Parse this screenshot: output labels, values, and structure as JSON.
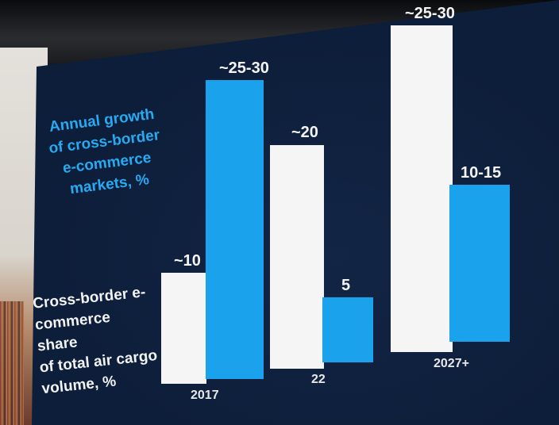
{
  "slide": {
    "legend_blue": "Annual growth\nof cross-border\ne-commerce\nmarkets, %",
    "legend_white": "Cross-border e-\ncommerce share\nof total air cargo\nvolume, %",
    "colors": {
      "background": "#0d1e3a",
      "share_bar": "#f4f5f4",
      "growth_bar": "#1aa3ec",
      "legend_blue": "#28aaf2"
    }
  },
  "chart_data": {
    "type": "bar",
    "categories": [
      "2017",
      "22",
      "2027+"
    ],
    "series": [
      {
        "name": "Cross-border e-commerce share of total air cargo volume, %",
        "values": [
          10,
          20,
          27.5
        ],
        "labels": [
          "~10",
          "~20",
          "~25-30"
        ]
      },
      {
        "name": "Annual growth of cross-border e-commerce markets, %",
        "values": [
          27.5,
          5,
          12.5
        ],
        "labels": [
          "~25-30",
          "5",
          "10-15"
        ]
      }
    ],
    "legend": "left",
    "grid": false
  }
}
